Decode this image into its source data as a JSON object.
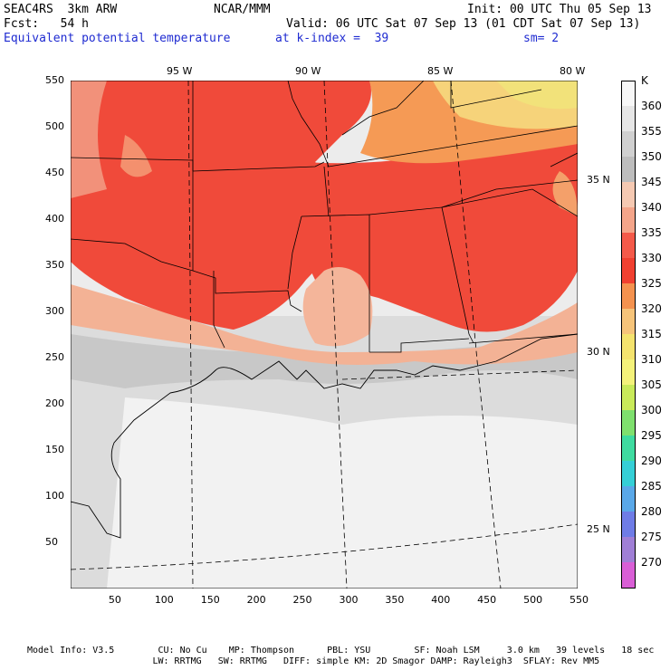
{
  "header": {
    "line1_left": "SEAC4RS  3km ARW",
    "line1_center": "NCAR/MMM",
    "line1_right": "Init: 00 UTC Thu 05 Sep 13",
    "line2_left": "Fcst:   54 h",
    "line2_right": "Valid: 06 UTC Sat 07 Sep 13 (01 CDT Sat 07 Sep 13)",
    "line3_left": "Equivalent potential temperature",
    "line3_center": "at k-index =  39",
    "line3_right": "sm= 2"
  },
  "axes": {
    "x_ticks": [
      "50",
      "100",
      "150",
      "200",
      "250",
      "300",
      "350",
      "400",
      "450",
      "500",
      "550"
    ],
    "y_ticks": [
      "550",
      "500",
      "450",
      "400",
      "350",
      "300",
      "250",
      "200",
      "150",
      "100",
      "50"
    ],
    "lon_labels": [
      "95 W",
      "90 W",
      "85 W",
      "80 W"
    ],
    "lat_labels": [
      "35 N",
      "30 N",
      "25 N"
    ]
  },
  "colorbar": {
    "unit": "K",
    "levels": [
      {
        "label": "360",
        "color": "#f7f7f7"
      },
      {
        "label": "355",
        "color": "#e6e6e6"
      },
      {
        "label": "350",
        "color": "#d0d0d0"
      },
      {
        "label": "345",
        "color": "#bdbdbd"
      },
      {
        "label": "340",
        "color": "#f5c9b2"
      },
      {
        "label": "335",
        "color": "#f4a58a"
      },
      {
        "label": "330",
        "color": "#f45a4a"
      },
      {
        "label": "325",
        "color": "#f04030"
      },
      {
        "label": "320",
        "color": "#f4924f"
      },
      {
        "label": "315",
        "color": "#f6c47a"
      },
      {
        "label": "310",
        "color": "#f4e36e"
      },
      {
        "label": "305",
        "color": "#f4f27a"
      },
      {
        "label": "300",
        "color": "#c9ea5a"
      },
      {
        "label": "295",
        "color": "#7fe06e"
      },
      {
        "label": "290",
        "color": "#3fdba0"
      },
      {
        "label": "285",
        "color": "#35cfd6"
      },
      {
        "label": "280",
        "color": "#5aa8e8"
      },
      {
        "label": "275",
        "color": "#6f7ce6"
      },
      {
        "label": "270",
        "color": "#a07fd6"
      },
      {
        "label": "",
        "color": "#d95fd6"
      }
    ]
  },
  "footer": {
    "line1": "Model Info: V3.5        CU: No Cu    MP: Thompson      PBL: YSU        SF: Noah LSM     3.0 km   39 levels   18 sec",
    "line2": "                       LW: RRTMG   SW: RRTMG   DIFF: simple KM: 2D Smagor DAMP: Rayleigh3  SFLAY: Rev MM5"
  }
}
